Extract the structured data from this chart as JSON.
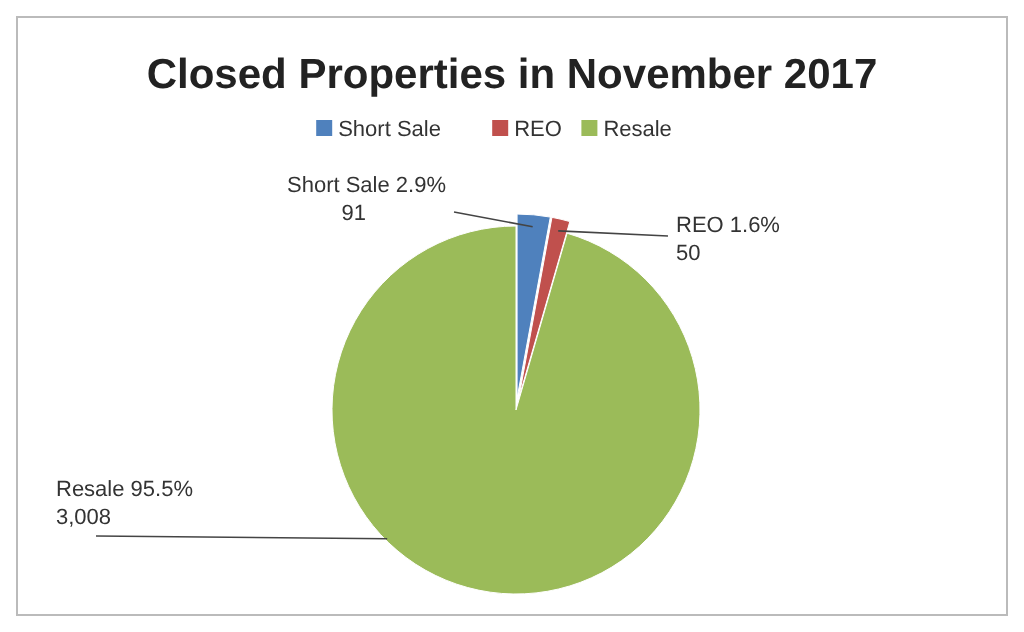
{
  "chart_data": {
    "type": "pie",
    "title": "Closed Properties in November 2017",
    "categories": [
      "Short Sale",
      "REO",
      "Resale"
    ],
    "values": [
      91,
      50,
      3008
    ],
    "colors": [
      "#4f81bd",
      "#c0504d",
      "#9bbb59"
    ],
    "value_labels": [
      "2.9%\n91",
      "1.6%\n50",
      "95.5%\n3,008"
    ],
    "legend": "top"
  }
}
